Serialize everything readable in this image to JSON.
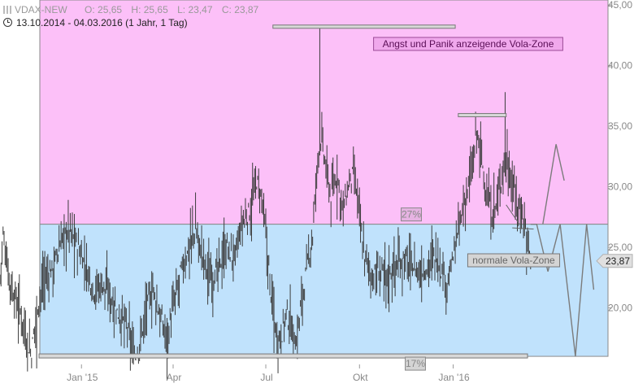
{
  "header": {
    "symbol": "VDAX-NEW",
    "open_label": "O:",
    "open": "25,65",
    "high_label": "H:",
    "high": "25,65",
    "low_label": "L:",
    "low": "23,47",
    "close_label": "C:",
    "close": "23,87",
    "period": "13.10.2014 - 04.03.2016 (1 Jahr, 1 Tag)"
  },
  "chart_data": {
    "type": "candlestick",
    "title": "",
    "xlabel": "",
    "ylabel": "",
    "x_ticks": [
      {
        "label": "Jan '15",
        "day": 80
      },
      {
        "label": "Apr",
        "day": 170
      },
      {
        "label": "Jul",
        "day": 261
      },
      {
        "label": "Okt",
        "day": 353
      },
      {
        "label": "Jan '16",
        "day": 445
      }
    ],
    "xlim": [
      0,
      597
    ],
    "y_ticks": [
      {
        "label": "20,00",
        "value": 20
      },
      {
        "label": "25,00",
        "value": 25
      },
      {
        "label": "30,00",
        "value": 30
      },
      {
        "label": "35,00",
        "value": 35
      },
      {
        "label": "40,00",
        "value": 40
      },
      {
        "label": "45,00",
        "value": 45
      }
    ],
    "ylim": [
      15.2,
      45.4
    ],
    "last_value_label": "23,87",
    "last_value": 23.87,
    "zones": [
      {
        "label": "Angst und Panik anzeigende Vola-Zone",
        "from": 26.9,
        "to": 45.4,
        "color": "#fcc0f8"
      },
      {
        "label": "normale Vola-Zone",
        "from": 16.0,
        "to": 26.9,
        "color": "#c0e2fc"
      }
    ],
    "level_labels": [
      {
        "label": "27%",
        "value": 26.9,
        "x_day": 358
      },
      {
        "label": "17%",
        "value": 16.0,
        "x_day": 358
      }
    ],
    "resistance_bars": [
      {
        "from_day": 268,
        "to_day": 447,
        "value": 43.2
      },
      {
        "from_day": 450,
        "to_day": 497,
        "value": 35.9
      }
    ],
    "waypoints": [
      [
        0,
        22.5
      ],
      [
        3,
        26.0
      ],
      [
        10,
        22.0
      ],
      [
        16,
        20.5
      ],
      [
        22,
        19.2
      ],
      [
        27,
        17.0
      ],
      [
        31,
        16.2
      ],
      [
        36,
        20.0
      ],
      [
        44,
        22.5
      ],
      [
        52,
        23.2
      ],
      [
        60,
        25.5
      ],
      [
        68,
        26.5
      ],
      [
        76,
        25.0
      ],
      [
        84,
        23.5
      ],
      [
        92,
        21.5
      ],
      [
        100,
        22.0
      ],
      [
        108,
        21.0
      ],
      [
        116,
        19.5
      ],
      [
        124,
        18.5
      ],
      [
        130,
        16.5
      ],
      [
        134,
        16.0
      ],
      [
        138,
        17.5
      ],
      [
        144,
        20.0
      ],
      [
        150,
        21.5
      ],
      [
        158,
        19.0
      ],
      [
        164,
        17.5
      ],
      [
        170,
        20.0
      ],
      [
        178,
        23.0
      ],
      [
        186,
        25.0
      ],
      [
        192,
        26.5
      ],
      [
        198,
        24.5
      ],
      [
        206,
        22.5
      ],
      [
        214,
        23.0
      ],
      [
        222,
        25.0
      ],
      [
        230,
        24.0
      ],
      [
        238,
        27.0
      ],
      [
        246,
        28.0
      ],
      [
        252,
        30.5
      ],
      [
        258,
        28.5
      ],
      [
        263,
        24.0
      ],
      [
        267,
        20.5
      ],
      [
        272,
        17.5
      ],
      [
        277,
        18.0
      ],
      [
        281,
        19.5
      ],
      [
        286,
        18.5
      ],
      [
        291,
        17.0
      ],
      [
        296,
        20.5
      ],
      [
        302,
        23.5
      ],
      [
        307,
        26.0
      ],
      [
        311,
        31.0
      ],
      [
        314,
        34.5
      ],
      [
        319,
        32.0
      ],
      [
        325,
        29.0
      ],
      [
        331,
        31.0
      ],
      [
        337,
        28.0
      ],
      [
        342,
        30.0
      ],
      [
        347,
        31.0
      ],
      [
        352,
        28.5
      ],
      [
        356,
        25.0
      ],
      [
        361,
        23.5
      ],
      [
        366,
        22.5
      ],
      [
        373,
        23.0
      ],
      [
        380,
        22.5
      ],
      [
        388,
        23.5
      ],
      [
        396,
        24.0
      ],
      [
        404,
        23.5
      ],
      [
        412,
        22.8
      ],
      [
        420,
        23.5
      ],
      [
        428,
        24.5
      ],
      [
        434,
        23.0
      ],
      [
        440,
        22.0
      ],
      [
        446,
        24.5
      ],
      [
        452,
        27.0
      ],
      [
        458,
        29.5
      ],
      [
        464,
        31.5
      ],
      [
        468,
        34.5
      ],
      [
        472,
        33.0
      ],
      [
        478,
        29.0
      ],
      [
        484,
        27.5
      ],
      [
        490,
        29.5
      ],
      [
        496,
        32.5
      ],
      [
        502,
        30.5
      ],
      [
        508,
        28.5
      ],
      [
        514,
        27.5
      ],
      [
        518,
        25.5
      ],
      [
        521,
        23.9
      ]
    ],
    "projection": [
      [
        521,
        26.9
      ],
      [
        527,
        26.9
      ],
      [
        538,
        23.0
      ],
      [
        550,
        26.9
      ],
      [
        565,
        16.0
      ],
      [
        576,
        26.9
      ],
      [
        583,
        21.5
      ]
    ],
    "projection_to_resistance": [
      [
        533,
        26.9
      ],
      [
        546,
        33.5
      ],
      [
        554,
        30.5
      ]
    ],
    "trend_hints": [
      [
        [
          497,
          28.5
        ],
        [
          510,
          26.9
        ]
      ],
      [
        [
          503,
          26.6
        ],
        [
          524,
          26.5
        ]
      ]
    ]
  }
}
